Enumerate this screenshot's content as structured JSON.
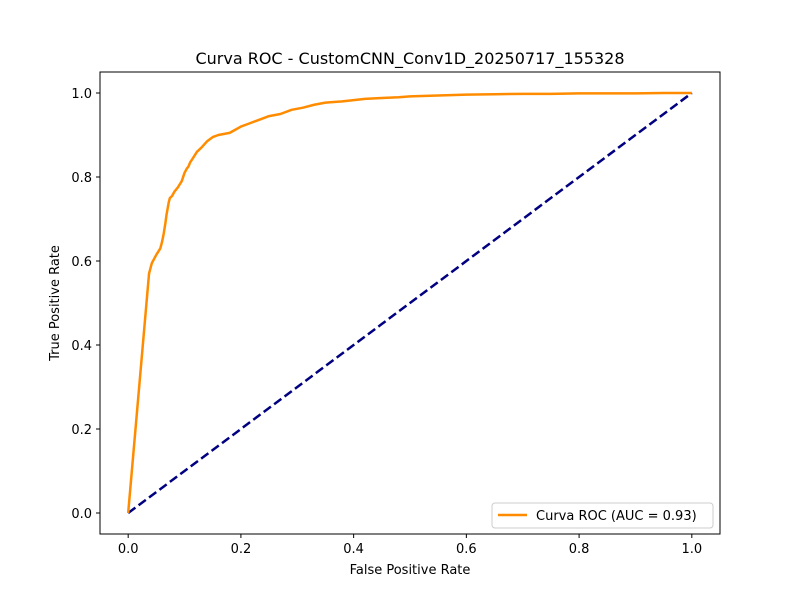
{
  "chart_data": {
    "type": "line",
    "title": "Curva ROC - CustomCNN_Conv1D_20250717_155328",
    "xlabel": "False Positive Rate",
    "ylabel": "True Positive Rate",
    "xlim": [
      -0.05,
      1.05
    ],
    "ylim": [
      -0.05,
      1.05
    ],
    "xticks": [
      0.0,
      0.2,
      0.4,
      0.6,
      0.8,
      1.0
    ],
    "yticks": [
      0.0,
      0.2,
      0.4,
      0.6,
      0.8,
      1.0
    ],
    "xtick_labels": [
      "0.0",
      "0.2",
      "0.4",
      "0.6",
      "0.8",
      "1.0"
    ],
    "ytick_labels": [
      "0.0",
      "0.2",
      "0.4",
      "0.6",
      "0.8",
      "1.0"
    ],
    "grid": false,
    "legend_position": "lower-right",
    "series": [
      {
        "name": "Curva ROC (AUC = 0.93)",
        "color": "#ff8c00",
        "style": "solid",
        "x": [
          0.0,
          0.037,
          0.042,
          0.05,
          0.057,
          0.06,
          0.063,
          0.066,
          0.068,
          0.07,
          0.072,
          0.074,
          0.078,
          0.082,
          0.088,
          0.095,
          0.1,
          0.104,
          0.107,
          0.11,
          0.115,
          0.122,
          0.13,
          0.14,
          0.15,
          0.16,
          0.18,
          0.2,
          0.21,
          0.23,
          0.25,
          0.27,
          0.29,
          0.31,
          0.33,
          0.35,
          0.38,
          0.4,
          0.42,
          0.45,
          0.48,
          0.5,
          0.55,
          0.6,
          0.65,
          0.7,
          0.75,
          0.8,
          0.85,
          0.9,
          0.95,
          1.0
        ],
        "y": [
          0.0,
          0.57,
          0.595,
          0.615,
          0.63,
          0.645,
          0.665,
          0.69,
          0.71,
          0.725,
          0.74,
          0.75,
          0.755,
          0.765,
          0.775,
          0.79,
          0.81,
          0.82,
          0.825,
          0.835,
          0.845,
          0.86,
          0.87,
          0.885,
          0.895,
          0.9,
          0.905,
          0.92,
          0.925,
          0.935,
          0.945,
          0.95,
          0.96,
          0.965,
          0.972,
          0.977,
          0.98,
          0.983,
          0.986,
          0.988,
          0.99,
          0.992,
          0.994,
          0.996,
          0.997,
          0.998,
          0.998,
          0.999,
          0.999,
          0.999,
          1.0,
          1.0
        ]
      },
      {
        "name": "",
        "color": "#000080",
        "style": "dashed",
        "x": [
          0.0,
          1.0
        ],
        "y": [
          0.0,
          1.0
        ]
      }
    ]
  }
}
